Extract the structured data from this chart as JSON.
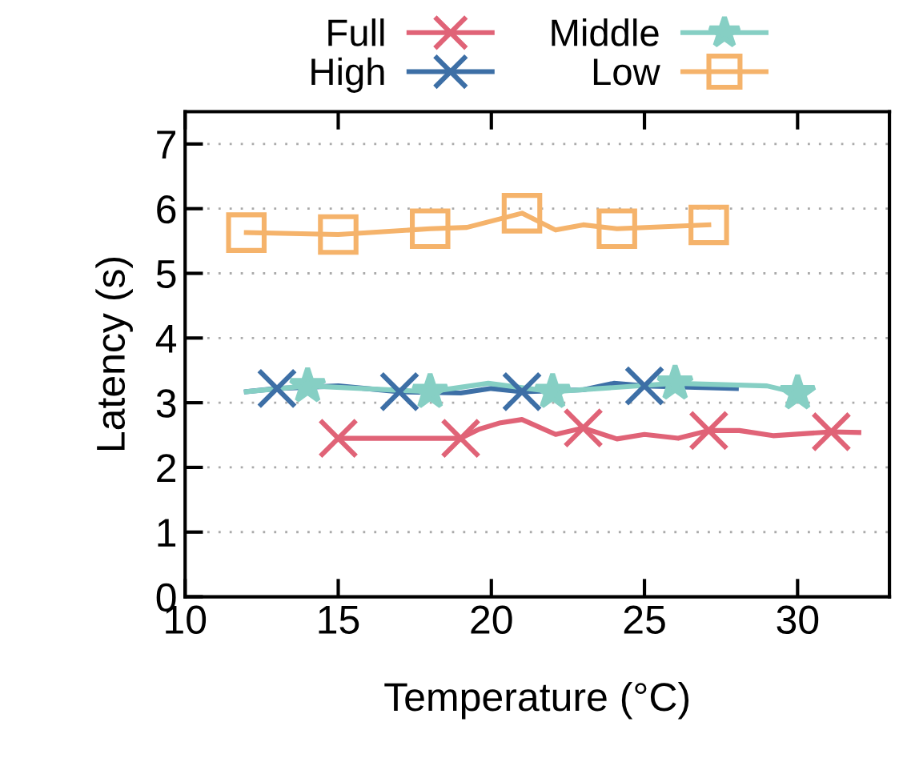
{
  "chart_data": {
    "type": "line",
    "xlabel": "Temperature (°C)",
    "ylabel": "Latency (s)",
    "xlim": [
      10,
      33
    ],
    "xticks": [
      10,
      15,
      20,
      25,
      30
    ],
    "ylim": [
      0,
      7.5
    ],
    "yticks": [
      0,
      1,
      2,
      3,
      4,
      5,
      6,
      7
    ],
    "grid": "y",
    "legend": "top",
    "line_style": "solid",
    "series": [
      {
        "color": "#e06377",
        "marker": "none",
        "x": [
          15,
          19,
          19.6,
          20.3,
          21,
          22.1,
          23,
          24.1,
          25,
          26.1,
          27.1,
          28.1,
          29.2,
          31.1,
          32
        ],
        "values": [
          2.45,
          2.45,
          2.59,
          2.69,
          2.74,
          2.51,
          2.61,
          2.44,
          2.51,
          2.45,
          2.57,
          2.57,
          2.49,
          2.55,
          2.54
        ]
      },
      {
        "color": "#3d6fa6",
        "marker": "none",
        "x": [
          12,
          13,
          15,
          17,
          19,
          20,
          21,
          23,
          24,
          25,
          28
        ],
        "values": [
          3.17,
          3.22,
          3.26,
          3.17,
          3.15,
          3.22,
          3.17,
          3.2,
          3.3,
          3.26,
          3.22
        ]
      },
      {
        "color": "#86cfc4",
        "marker": "none",
        "x": [
          12,
          14,
          18,
          19.9,
          22,
          26,
          29,
          30
        ],
        "values": [
          3.17,
          3.26,
          3.17,
          3.3,
          3.17,
          3.3,
          3.26,
          3.15
        ]
      },
      {
        "color": "#f5b36b",
        "marker": "none",
        "x": [
          12,
          15,
          18,
          19.2,
          21,
          22.1,
          23,
          24.1,
          27.1
        ],
        "values": [
          5.63,
          5.6,
          5.69,
          5.71,
          5.93,
          5.67,
          5.75,
          5.69,
          5.75
        ]
      },
      {
        "name": "Full",
        "type": "scatter",
        "color": "#e06377",
        "marker": "cross",
        "x": [
          15,
          19,
          23,
          27.1,
          31.1
        ],
        "values": [
          2.45,
          2.45,
          2.61,
          2.57,
          2.55
        ]
      },
      {
        "name": "High",
        "type": "scatter",
        "color": "#3d6fa6",
        "marker": "cross",
        "x": [
          13,
          17,
          21,
          25
        ],
        "values": [
          3.22,
          3.17,
          3.17,
          3.26
        ]
      },
      {
        "name": "Middle",
        "type": "scatter",
        "color": "#86cfc4",
        "marker": "star",
        "x": [
          14,
          18,
          22,
          26,
          30
        ],
        "values": [
          3.26,
          3.17,
          3.17,
          3.3,
          3.15
        ]
      },
      {
        "name": "Low",
        "type": "scatter",
        "color": "#f5b36b",
        "marker": "square",
        "x": [
          12,
          15,
          18,
          21,
          24.1,
          27.1
        ],
        "values": [
          5.63,
          5.6,
          5.69,
          5.93,
          5.69,
          5.75
        ]
      }
    ]
  }
}
